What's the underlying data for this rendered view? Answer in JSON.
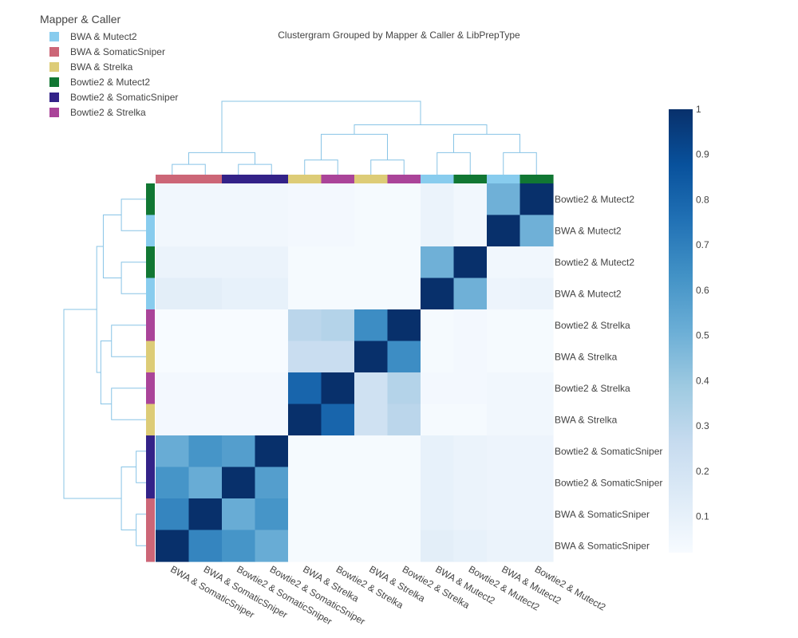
{
  "chart_data": {
    "type": "heatmap",
    "title": "Clustergram Grouped by Mapper & Caller & LibPrepType",
    "legend": {
      "title": "Mapper & Caller",
      "placement": "top-left",
      "entries": [
        {
          "name": "BWA & Mutect2",
          "color": "#88CCEE"
        },
        {
          "name": "BWA & SomaticSniper",
          "color": "#CC6677"
        },
        {
          "name": "BWA & Strelka",
          "color": "#DDCC77"
        },
        {
          "name": "Bowtie2 & Mutect2",
          "color": "#117733"
        },
        {
          "name": "Bowtie2 & SomaticSniper",
          "color": "#332288"
        },
        {
          "name": "Bowtie2 & Strelka",
          "color": "#AA4499"
        }
      ]
    },
    "x_labels": [
      "BWA & SomaticSniper",
      "BWA & SomaticSniper",
      "Bowtie2 & SomaticSniper",
      "Bowtie2 & SomaticSniper",
      "BWA & Strelka",
      "Bowtie2 & Strelka",
      "BWA & Strelka",
      "Bowtie2 & Strelka",
      "BWA & Mutect2",
      "Bowtie2 & Mutect2",
      "BWA & Mutect2",
      "Bowtie2 & Mutect2"
    ],
    "y_labels": [
      "Bowtie2 & Mutect2",
      "BWA & Mutect2",
      "Bowtie2 & Mutect2",
      "BWA & Mutect2",
      "Bowtie2 & Strelka",
      "BWA & Strelka",
      "Bowtie2 & Strelka",
      "BWA & Strelka",
      "Bowtie2 & SomaticSniper",
      "Bowtie2 & SomaticSniper",
      "BWA & SomaticSniper",
      "BWA & SomaticSniper"
    ],
    "z": [
      [
        0.05,
        0.05,
        0.05,
        0.05,
        0.04,
        0.04,
        0.03,
        0.03,
        0.08,
        0.05,
        0.5,
        1.0
      ],
      [
        0.05,
        0.05,
        0.05,
        0.05,
        0.04,
        0.04,
        0.03,
        0.03,
        0.08,
        0.05,
        1.0,
        0.5
      ],
      [
        0.08,
        0.08,
        0.08,
        0.08,
        0.03,
        0.03,
        0.03,
        0.03,
        0.5,
        1.0,
        0.05,
        0.05
      ],
      [
        0.12,
        0.12,
        0.1,
        0.1,
        0.03,
        0.03,
        0.03,
        0.03,
        1.0,
        0.5,
        0.07,
        0.08
      ],
      [
        0.02,
        0.02,
        0.02,
        0.02,
        0.3,
        0.32,
        0.65,
        1.0,
        0.03,
        0.04,
        0.03,
        0.03
      ],
      [
        0.02,
        0.02,
        0.02,
        0.02,
        0.25,
        0.25,
        1.0,
        0.65,
        0.03,
        0.04,
        0.03,
        0.03
      ],
      [
        0.04,
        0.04,
        0.04,
        0.04,
        0.8,
        1.0,
        0.22,
        0.32,
        0.04,
        0.04,
        0.05,
        0.05
      ],
      [
        0.04,
        0.04,
        0.04,
        0.04,
        1.0,
        0.8,
        0.22,
        0.3,
        0.03,
        0.03,
        0.05,
        0.05
      ],
      [
        0.52,
        0.62,
        0.58,
        1.0,
        0.03,
        0.03,
        0.03,
        0.03,
        0.1,
        0.08,
        0.07,
        0.07
      ],
      [
        0.62,
        0.52,
        1.0,
        0.58,
        0.03,
        0.03,
        0.03,
        0.03,
        0.1,
        0.08,
        0.07,
        0.07
      ],
      [
        0.68,
        1.0,
        0.52,
        0.62,
        0.03,
        0.03,
        0.03,
        0.03,
        0.1,
        0.08,
        0.07,
        0.07
      ],
      [
        1.0,
        0.68,
        0.62,
        0.52,
        0.03,
        0.03,
        0.03,
        0.03,
        0.12,
        0.1,
        0.08,
        0.08
      ]
    ],
    "row_groups": [
      "Bowtie2 & Mutect2",
      "BWA & Mutect2",
      "Bowtie2 & Mutect2",
      "BWA & Mutect2",
      "Bowtie2 & Strelka",
      "BWA & Strelka",
      "Bowtie2 & Strelka",
      "BWA & Strelka",
      "Bowtie2 & SomaticSniper",
      "Bowtie2 & SomaticSniper",
      "BWA & SomaticSniper",
      "BWA & SomaticSniper"
    ],
    "col_groups": [
      "BWA & SomaticSniper",
      "BWA & SomaticSniper",
      "Bowtie2 & SomaticSniper",
      "Bowtie2 & SomaticSniper",
      "BWA & Strelka",
      "Bowtie2 & Strelka",
      "BWA & Strelka",
      "Bowtie2 & Strelka",
      "BWA & Mutect2",
      "Bowtie2 & Mutect2",
      "BWA & Mutect2",
      "Bowtie2 & Mutect2"
    ],
    "colorscale": {
      "min": 0.02,
      "max": 1.0,
      "ticks": [
        "0.1",
        "0.2",
        "0.3",
        "0.4",
        "0.5",
        "0.6",
        "0.7",
        "0.8",
        "0.9",
        "1"
      ],
      "tick_values": [
        0.1,
        0.2,
        0.3,
        0.4,
        0.5,
        0.6,
        0.7,
        0.8,
        0.9,
        1.0
      ],
      "colors": [
        "#f7fbff",
        "#deebf7",
        "#c6dbef",
        "#9ecae1",
        "#6baed6",
        "#4292c6",
        "#2171b5",
        "#08519c",
        "#08306b"
      ]
    },
    "dendrogram_color": "#88c4e6",
    "col_dendrogram": [
      [
        0,
        1,
        0.14
      ],
      [
        2,
        3,
        0.14
      ],
      [
        12,
        13,
        0.3
      ],
      [
        4,
        5,
        0.2
      ],
      [
        6,
        7,
        0.2
      ],
      [
        15,
        16,
        0.55
      ],
      [
        8,
        9,
        0.3
      ],
      [
        10,
        11,
        0.3
      ],
      [
        18,
        19,
        0.55
      ],
      [
        17,
        20,
        0.68
      ],
      [
        14,
        21,
        1.0
      ]
    ],
    "row_dendrogram": [
      [
        0,
        1,
        0.3
      ],
      [
        2,
        3,
        0.3
      ],
      [
        12,
        13,
        0.52
      ],
      [
        4,
        5,
        0.42
      ],
      [
        6,
        7,
        0.42
      ],
      [
        15,
        16,
        0.55
      ],
      [
        14,
        17,
        0.6
      ],
      [
        8,
        9,
        0.12
      ],
      [
        10,
        11,
        0.12
      ],
      [
        19,
        20,
        0.3
      ],
      [
        18,
        21,
        1.0
      ]
    ]
  }
}
